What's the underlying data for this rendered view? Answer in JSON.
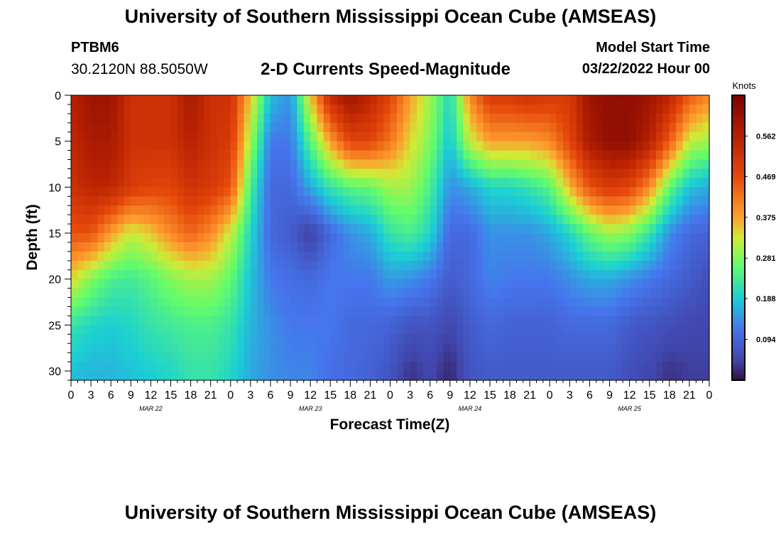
{
  "header": {
    "title": "University of Southern Mississippi Ocean Cube (AMSEAS)",
    "station_id": "PTBM6",
    "coordinates": "30.2120N  88.5050W",
    "subtitle": "2-D Currents Speed-Magnitude",
    "model_start_label": "Model Start Time",
    "model_start_value": "03/22/2022 Hour 00"
  },
  "footer": {
    "title": "University of Southern Mississippi Ocean Cube (AMSEAS)"
  },
  "chart_data": {
    "type": "heatmap",
    "title": "2-D Currents Speed-Magnitude",
    "xlabel": "Forecast Time(Z)",
    "ylabel": "Depth (ft)",
    "x_unit": "forecast hours since 03/22/2022 00Z",
    "xlim": [
      0,
      96
    ],
    "ylim": [
      0,
      31
    ],
    "y_inverted": true,
    "x_tick_labels": [
      "0",
      "3",
      "6",
      "9",
      "12",
      "15",
      "18",
      "21",
      "0",
      "3",
      "6",
      "9",
      "12",
      "15",
      "18",
      "21",
      "0",
      "3",
      "6",
      "9",
      "12",
      "15",
      "18",
      "21",
      "0",
      "3",
      "6",
      "9",
      "12",
      "15",
      "18",
      "21",
      "0"
    ],
    "y_tick_labels": [
      "0",
      "5",
      "10",
      "15",
      "20",
      "25",
      "30"
    ],
    "y_tick_values": [
      0,
      5,
      10,
      15,
      20,
      25,
      30
    ],
    "date_labels": [
      {
        "label": "MAR 22",
        "hour": 12
      },
      {
        "label": "MAR 23",
        "hour": 36
      },
      {
        "label": "MAR 24",
        "hour": 60
      },
      {
        "label": "MAR 25",
        "hour": 84
      }
    ],
    "colorbar": {
      "title": "Knots",
      "min": 0.0,
      "max": 0.656,
      "ticks": [
        "0.562",
        "0.469",
        "0.375",
        "0.281",
        "0.188",
        "0.094"
      ],
      "tick_values": [
        0.562,
        0.469,
        0.375,
        0.281,
        0.188,
        0.094
      ]
    },
    "grid_hours": [
      0,
      3,
      6,
      9,
      12,
      15,
      18,
      21,
      24,
      27,
      30,
      33,
      36,
      39,
      42,
      45,
      48,
      51,
      54,
      57,
      60,
      63,
      66,
      69,
      72,
      75,
      78,
      81,
      84,
      87,
      90,
      93,
      96
    ],
    "grid_depths_ft": [
      0,
      5,
      10,
      15,
      20,
      25,
      30
    ],
    "speed_knots": [
      [
        0.56,
        0.6,
        0.6,
        0.52,
        0.52,
        0.52,
        0.58,
        0.52,
        0.52,
        0.35,
        0.18,
        0.14,
        0.35,
        0.54,
        0.6,
        0.55,
        0.48,
        0.38,
        0.3,
        0.2,
        0.4,
        0.5,
        0.5,
        0.52,
        0.5,
        0.5,
        0.6,
        0.62,
        0.62,
        0.6,
        0.55,
        0.45,
        0.4
      ],
      [
        0.54,
        0.58,
        0.58,
        0.52,
        0.52,
        0.52,
        0.56,
        0.52,
        0.5,
        0.3,
        0.12,
        0.12,
        0.25,
        0.38,
        0.48,
        0.48,
        0.42,
        0.34,
        0.28,
        0.18,
        0.32,
        0.38,
        0.38,
        0.38,
        0.4,
        0.48,
        0.58,
        0.62,
        0.62,
        0.56,
        0.45,
        0.32,
        0.3
      ],
      [
        0.52,
        0.55,
        0.55,
        0.5,
        0.48,
        0.48,
        0.52,
        0.5,
        0.46,
        0.24,
        0.1,
        0.1,
        0.16,
        0.22,
        0.25,
        0.26,
        0.3,
        0.3,
        0.24,
        0.14,
        0.16,
        0.2,
        0.2,
        0.22,
        0.25,
        0.36,
        0.46,
        0.5,
        0.48,
        0.4,
        0.26,
        0.18,
        0.16
      ],
      [
        0.46,
        0.46,
        0.38,
        0.32,
        0.35,
        0.4,
        0.44,
        0.4,
        0.32,
        0.2,
        0.1,
        0.08,
        0.04,
        0.1,
        0.14,
        0.16,
        0.22,
        0.24,
        0.2,
        0.1,
        0.1,
        0.14,
        0.14,
        0.14,
        0.16,
        0.2,
        0.26,
        0.3,
        0.28,
        0.22,
        0.14,
        0.1,
        0.09
      ],
      [
        0.34,
        0.28,
        0.24,
        0.23,
        0.25,
        0.28,
        0.3,
        0.3,
        0.26,
        0.18,
        0.12,
        0.11,
        0.1,
        0.12,
        0.12,
        0.12,
        0.15,
        0.14,
        0.12,
        0.08,
        0.1,
        0.13,
        0.12,
        0.12,
        0.12,
        0.14,
        0.16,
        0.16,
        0.14,
        0.12,
        0.1,
        0.08,
        0.06
      ],
      [
        0.22,
        0.2,
        0.19,
        0.2,
        0.22,
        0.23,
        0.24,
        0.24,
        0.22,
        0.17,
        0.14,
        0.12,
        0.12,
        0.12,
        0.1,
        0.1,
        0.09,
        0.07,
        0.07,
        0.05,
        0.08,
        0.1,
        0.09,
        0.09,
        0.09,
        0.1,
        0.1,
        0.1,
        0.08,
        0.07,
        0.06,
        0.05,
        0.05
      ],
      [
        0.18,
        0.17,
        0.17,
        0.18,
        0.19,
        0.2,
        0.22,
        0.22,
        0.2,
        0.16,
        0.14,
        0.13,
        0.13,
        0.11,
        0.1,
        0.09,
        0.07,
        0.03,
        0.05,
        0.02,
        0.07,
        0.08,
        0.08,
        0.08,
        0.08,
        0.08,
        0.08,
        0.08,
        0.06,
        0.05,
        0.03,
        0.04,
        0.04
      ]
    ]
  }
}
